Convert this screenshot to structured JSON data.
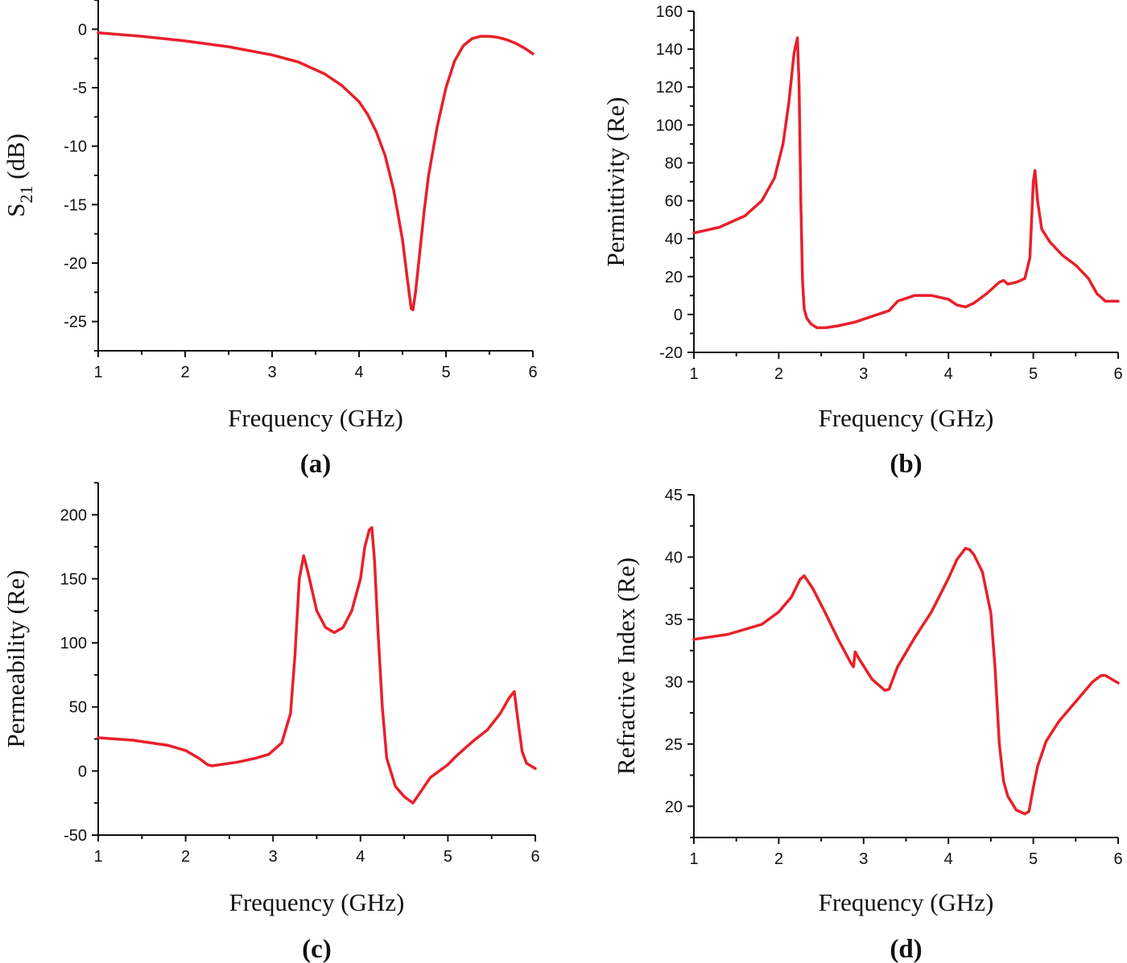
{
  "colors": {
    "series": "#e8202a",
    "axis": "#111111"
  },
  "chart_data": [
    {
      "id": "a",
      "panel_label": "(a)",
      "type": "line",
      "xlabel": "Frequency (GHz)",
      "ylabel_main": "S",
      "ylabel_sub": "21",
      "ylabel_rest": " (dB)",
      "xlim": [
        1,
        6
      ],
      "ylim": [
        -27.5,
        2.5
      ],
      "xticks": [
        1,
        2,
        3,
        4,
        5,
        6
      ],
      "xtick_labels": [
        "1",
        "2",
        "3",
        "4",
        "5",
        "6"
      ],
      "yticks": [
        0,
        -5,
        -10,
        -15,
        -20,
        -25
      ],
      "ytick_labels": [
        "0",
        "-5",
        "-10",
        "-15",
        "-20",
        "-25"
      ],
      "series": [
        {
          "name": "S21",
          "x": [
            1.0,
            1.5,
            2.0,
            2.5,
            3.0,
            3.3,
            3.6,
            3.8,
            4.0,
            4.1,
            4.2,
            4.3,
            4.4,
            4.5,
            4.55,
            4.6,
            4.62,
            4.65,
            4.7,
            4.75,
            4.8,
            4.9,
            5.0,
            5.1,
            5.2,
            5.3,
            5.4,
            5.5,
            5.6,
            5.7,
            5.8,
            5.9,
            6.0
          ],
          "y": [
            -0.3,
            -0.6,
            -1.0,
            -1.5,
            -2.2,
            -2.8,
            -3.8,
            -4.8,
            -6.2,
            -7.3,
            -8.8,
            -10.8,
            -13.8,
            -18.0,
            -21.0,
            -23.9,
            -24.0,
            -22.5,
            -19.0,
            -15.5,
            -12.5,
            -8.3,
            -5.0,
            -2.7,
            -1.4,
            -0.8,
            -0.6,
            -0.6,
            -0.7,
            -0.9,
            -1.2,
            -1.6,
            -2.1
          ]
        }
      ]
    },
    {
      "id": "b",
      "panel_label": "(b)",
      "type": "line",
      "xlabel": "Frequency (GHz)",
      "ylabel": "Permittivity (Re)",
      "xlim": [
        1,
        6
      ],
      "ylim": [
        -20,
        160
      ],
      "xticks": [
        1,
        2,
        3,
        4,
        5,
        6
      ],
      "xtick_labels": [
        "1",
        "2",
        "3",
        "4",
        "5",
        "6"
      ],
      "yticks": [
        -20,
        0,
        20,
        40,
        60,
        80,
        100,
        120,
        140,
        160
      ],
      "ytick_labels": [
        "-20",
        "0",
        "20",
        "40",
        "60",
        "80",
        "100",
        "120",
        "140",
        "160"
      ],
      "series": [
        {
          "name": "Permittivity",
          "x": [
            1.0,
            1.3,
            1.6,
            1.8,
            1.95,
            2.05,
            2.12,
            2.18,
            2.22,
            2.24,
            2.26,
            2.28,
            2.3,
            2.33,
            2.38,
            2.45,
            2.55,
            2.7,
            2.9,
            3.1,
            3.3,
            3.4,
            3.6,
            3.8,
            4.0,
            4.1,
            4.2,
            4.3,
            4.45,
            4.6,
            4.65,
            4.7,
            4.8,
            4.9,
            4.96,
            5.0,
            5.02,
            5.05,
            5.1,
            5.2,
            5.35,
            5.5,
            5.65,
            5.75,
            5.85,
            6.0
          ],
          "y": [
            43,
            46,
            52,
            60,
            72,
            90,
            112,
            138,
            146,
            120,
            60,
            18,
            3,
            -2,
            -5,
            -7,
            -7,
            -6,
            -4,
            -1,
            2,
            7,
            10,
            10,
            8,
            5,
            4,
            6,
            11,
            17,
            18,
            16,
            17,
            19,
            30,
            70,
            76,
            60,
            45,
            38,
            31,
            26,
            19,
            11,
            7,
            7
          ]
        }
      ]
    },
    {
      "id": "c",
      "panel_label": "(c)",
      "type": "line",
      "xlabel": "Frequency (GHz)",
      "ylabel": "Permeability (Re)",
      "xlim": [
        1,
        6
      ],
      "ylim": [
        -50,
        225
      ],
      "xticks": [
        1,
        2,
        3,
        4,
        5,
        6
      ],
      "xtick_labels": [
        "1",
        "2",
        "3",
        "4",
        "5",
        "6"
      ],
      "yticks": [
        -50,
        0,
        50,
        100,
        150,
        200
      ],
      "ytick_labels": [
        "-50",
        "0",
        "50",
        "100",
        "150",
        "200"
      ],
      "series": [
        {
          "name": "Permeability",
          "x": [
            1.0,
            1.4,
            1.8,
            2.0,
            2.15,
            2.25,
            2.3,
            2.4,
            2.6,
            2.8,
            2.95,
            3.1,
            3.2,
            3.25,
            3.3,
            3.35,
            3.4,
            3.5,
            3.6,
            3.7,
            3.8,
            3.9,
            4.0,
            4.05,
            4.1,
            4.13,
            4.16,
            4.2,
            4.25,
            4.3,
            4.4,
            4.5,
            4.6,
            4.7,
            4.8,
            4.9,
            5.0,
            5.1,
            5.2,
            5.3,
            5.45,
            5.6,
            5.7,
            5.76,
            5.8,
            5.85,
            5.9,
            6.0
          ],
          "y": [
            26,
            24,
            20,
            16,
            10,
            5,
            4,
            5,
            7,
            10,
            13,
            22,
            45,
            90,
            150,
            168,
            155,
            125,
            112,
            108,
            112,
            125,
            150,
            175,
            188,
            190,
            165,
            110,
            50,
            10,
            -12,
            -20,
            -25,
            -15,
            -5,
            0,
            5,
            12,
            18,
            24,
            32,
            45,
            57,
            62,
            40,
            15,
            6,
            2
          ]
        }
      ]
    },
    {
      "id": "d",
      "panel_label": "(d)",
      "type": "line",
      "xlabel": "Frequency (GHz)",
      "ylabel": "Refractive Index (Re)",
      "xlim": [
        1,
        6
      ],
      "ylim": [
        17.5,
        45
      ],
      "xticks": [
        1,
        2,
        3,
        4,
        5,
        6
      ],
      "xtick_labels": [
        "1",
        "2",
        "3",
        "4",
        "5",
        "6"
      ],
      "yticks": [
        20,
        25,
        30,
        35,
        40,
        45
      ],
      "ytick_labels": [
        "20",
        "25",
        "30",
        "35",
        "40",
        "45"
      ],
      "series": [
        {
          "name": "Refractive Index",
          "x": [
            1.0,
            1.4,
            1.8,
            2.0,
            2.15,
            2.25,
            2.3,
            2.4,
            2.55,
            2.7,
            2.85,
            2.88,
            2.9,
            2.95,
            3.1,
            3.25,
            3.3,
            3.4,
            3.6,
            3.8,
            4.0,
            4.1,
            4.2,
            4.25,
            4.3,
            4.4,
            4.5,
            4.55,
            4.6,
            4.65,
            4.7,
            4.8,
            4.9,
            4.95,
            5.0,
            5.05,
            5.15,
            5.3,
            5.5,
            5.7,
            5.8,
            5.85,
            5.9,
            6.0
          ],
          "y": [
            33.4,
            33.8,
            34.6,
            35.6,
            36.8,
            38.2,
            38.5,
            37.5,
            35.5,
            33.4,
            31.5,
            31.2,
            32.4,
            31.8,
            30.2,
            29.3,
            29.4,
            31.2,
            33.5,
            35.6,
            38.3,
            39.8,
            40.7,
            40.6,
            40.2,
            38.8,
            35.5,
            31.0,
            25.0,
            22.0,
            20.8,
            19.7,
            19.4,
            19.6,
            21.5,
            23.2,
            25.2,
            26.8,
            28.4,
            30.0,
            30.5,
            30.5,
            30.3,
            29.9
          ]
        }
      ]
    }
  ]
}
